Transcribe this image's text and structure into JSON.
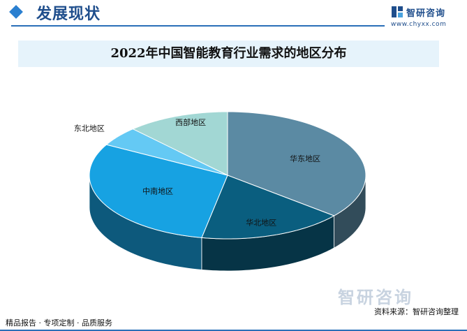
{
  "header": {
    "title": "发展现状",
    "brand_name": "智研咨询",
    "brand_url": "www.chyxx.com"
  },
  "footer": {
    "left_text": "精品报告 · 专项定制 · 品质服务",
    "source_text": "资料来源：智研咨询整理",
    "watermark": "智研咨询"
  },
  "colors": {
    "accent": "#2a6fb8",
    "title_band": "#e6f3fb"
  },
  "chart_data": {
    "type": "pie",
    "title": "2022年中国智能教育行业需求的地区分布",
    "categories": [
      "华东地区",
      "华北地区",
      "中南地区",
      "东北地区",
      "西部地区"
    ],
    "values": [
      36,
      17,
      30,
      5,
      12
    ],
    "colors": [
      "#5b8aa3",
      "#0a5e7f",
      "#17a2e2",
      "#64c9f4",
      "#a2d7d4"
    ],
    "start_angle_deg": 0,
    "3d": true
  }
}
